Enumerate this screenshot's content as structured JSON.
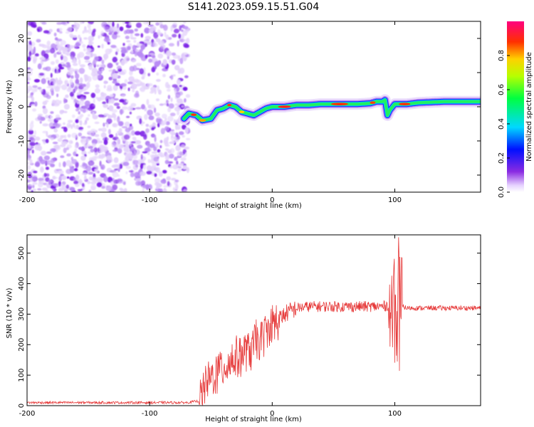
{
  "figure_title": "S141.2023.059.15.51.G04",
  "colors": {
    "snr_line": "#e63a3a",
    "background": "#ffffff"
  },
  "chart_data": [
    {
      "type": "heatmap",
      "xlabel": "Height of straight line (km)",
      "ylabel": "Frequency (Hz)",
      "xlim": [
        -200,
        170
      ],
      "ylim": [
        -25,
        25
      ],
      "x_ticks": [
        -200,
        -100,
        0,
        100
      ],
      "y_ticks": [
        -20,
        -10,
        0,
        10,
        20
      ],
      "noise_region_x": [
        -200,
        -70
      ],
      "ridge": {
        "x": [
          -72,
          -68,
          -62,
          -57,
          -50,
          -45,
          -40,
          -35,
          -30,
          -25,
          -20,
          -15,
          -10,
          -5,
          0,
          5,
          10,
          20,
          30,
          40,
          50,
          60,
          70,
          80,
          85,
          90,
          92,
          94,
          96,
          100,
          110,
          120,
          140,
          160,
          170
        ],
        "freq": [
          -3.5,
          -2.0,
          -2.5,
          -4.0,
          -3.5,
          -1.0,
          -0.5,
          0.5,
          0.0,
          -1.5,
          -2.0,
          -2.5,
          -1.5,
          -0.5,
          0.0,
          0.0,
          0.0,
          0.5,
          0.5,
          0.8,
          0.8,
          0.8,
          0.8,
          1.0,
          1.5,
          1.5,
          2.0,
          -2.5,
          -1.0,
          0.8,
          0.8,
          1.2,
          1.5,
          1.5,
          1.5
        ]
      },
      "colorbar": {
        "label": "Normalized spectral amplitude",
        "range": [
          0.0,
          1.0
        ],
        "ticks": [
          "0.0",
          "0.2",
          "0.4",
          "0.6",
          "0.8"
        ]
      }
    },
    {
      "type": "line",
      "xlabel": "Height of straight line (km)",
      "ylabel": "SNR (10 * v/v)",
      "xlim": [
        -200,
        170
      ],
      "ylim": [
        0,
        560
      ],
      "x_ticks": [
        -200,
        -100,
        0,
        100
      ],
      "y_ticks": [
        0,
        100,
        200,
        300,
        400,
        500
      ],
      "grid": false,
      "series": [
        {
          "x": [
            -200,
            -150,
            -100,
            -70,
            -60,
            -57,
            -55,
            -52,
            -50,
            -45,
            -40,
            -35,
            -30,
            -25,
            -20,
            -15,
            -10,
            -5,
            0,
            10,
            20,
            30,
            40,
            50,
            60,
            70,
            80,
            90,
            95,
            98,
            100,
            102,
            104,
            106,
            110,
            130,
            150,
            170
          ],
          "y": [
            10,
            10,
            10,
            10,
            15,
            30,
            60,
            80,
            90,
            110,
            130,
            140,
            160,
            170,
            180,
            195,
            215,
            240,
            260,
            300,
            320,
            325,
            325,
            325,
            325,
            325,
            325,
            325,
            330,
            330,
            330,
            330,
            330,
            325,
            320,
            320,
            320,
            320
          ]
        }
      ]
    }
  ]
}
